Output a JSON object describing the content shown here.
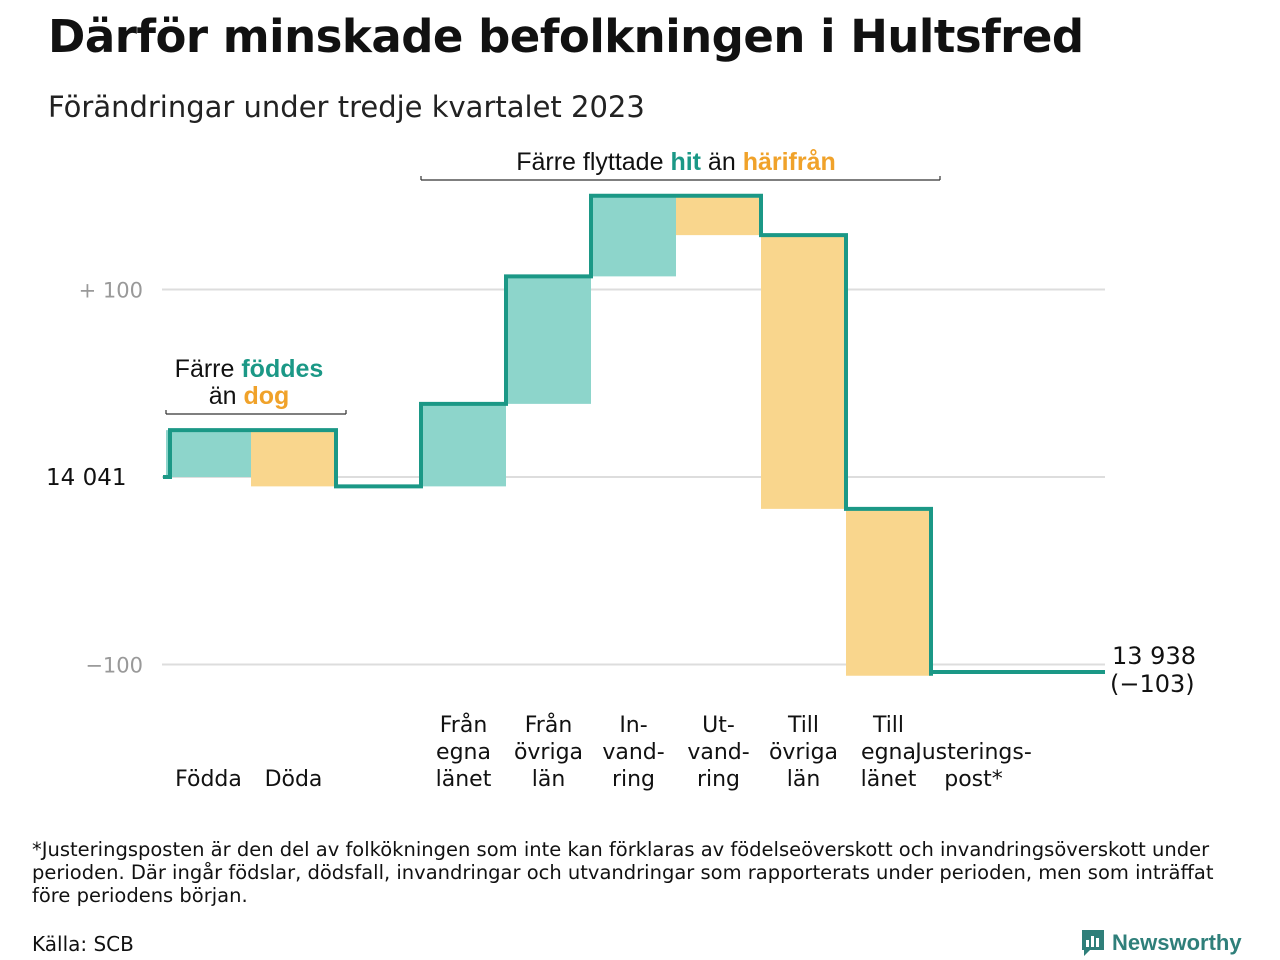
{
  "title": "Därför minskade befolkningen i Hultsfred",
  "subtitle": "Förändringar under tredje kvartalet 2023",
  "colors": {
    "increase": "#8dd5cb",
    "decrease": "#f9d68d",
    "line": "#1b9886",
    "grid": "#dddddd",
    "axis_text": "#999999",
    "teal_text": "#1b9886",
    "orange_text": "#f0a22a",
    "brand": "#2f7f7a"
  },
  "chart_data": {
    "type": "waterfall",
    "start": {
      "label": "14 041",
      "value": 0
    },
    "end": {
      "label": "13 938",
      "change_label": "(−103)",
      "value": -103
    },
    "yticks": [
      {
        "label": "+ 100",
        "value": 100
      },
      {
        "label": "−100",
        "value": -100
      }
    ],
    "ylim": [
      -110,
      160
    ],
    "steps": [
      {
        "label_lines": [
          "Födda"
        ],
        "delta": 25,
        "kind": "increase"
      },
      {
        "label_lines": [
          "Döda"
        ],
        "delta": -30,
        "kind": "decrease"
      },
      {
        "label_lines": [],
        "delta": 0,
        "kind": "gap"
      },
      {
        "label_lines": [
          "Från",
          "egna",
          "länet"
        ],
        "delta": 44,
        "kind": "increase"
      },
      {
        "label_lines": [
          "Från",
          "övriga",
          "län"
        ],
        "delta": 68,
        "kind": "increase"
      },
      {
        "label_lines": [
          "In-",
          "vand-",
          "ring"
        ],
        "delta": 43,
        "kind": "increase"
      },
      {
        "label_lines": [
          "Ut-",
          "vand-",
          "ring"
        ],
        "delta": -21,
        "kind": "decrease"
      },
      {
        "label_lines": [
          "Till",
          "övriga",
          "län"
        ],
        "delta": -146,
        "kind": "decrease"
      },
      {
        "label_lines": [
          "Till",
          "egna",
          "länet"
        ],
        "delta": -89,
        "kind": "decrease"
      },
      {
        "label_lines": [
          "Justerings-",
          "post*"
        ],
        "delta": 2,
        "kind": "adjustment"
      }
    ],
    "annotations": [
      {
        "first": 0,
        "last": 1,
        "parts": [
          [
            {
              "text": "Färre ",
              "style": "plain"
            },
            {
              "text": "föddes",
              "style": "teal"
            }
          ],
          [
            {
              "text": "än ",
              "style": "plain"
            },
            {
              "text": "dog",
              "style": "orange"
            }
          ]
        ]
      },
      {
        "first": 3,
        "last": 8,
        "parts": [
          [
            {
              "text": "Färre flyttade ",
              "style": "plain"
            },
            {
              "text": "hit",
              "style": "teal"
            },
            {
              "text": " än ",
              "style": "plain"
            },
            {
              "text": "härifrån",
              "style": "orange"
            }
          ]
        ]
      }
    ]
  },
  "footnote": "*Justeringsposten är den del av folkökningen som inte kan förklaras av födelseöverskott och invandringsöverskott under perioden. Där ingår födslar, dödsfall, invandringar och utvandringar som rapporterats under perioden, men som inträffat före periodens början.",
  "source": "Källa: SCB",
  "brand": {
    "name": "Newsworthy",
    "icon": "newsworthy-logo-icon"
  }
}
